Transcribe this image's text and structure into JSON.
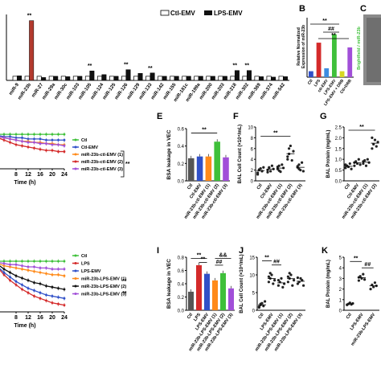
{
  "chart_data": [
    {
      "panel": "A",
      "type": "bar",
      "legend": [
        "Ctl-EMV",
        "LPS-EMV"
      ],
      "categories": [
        "miR-9",
        "miR-23b",
        "miR-27",
        "miR-29a",
        "miR-30c",
        "miR-103",
        "miR-105",
        "miR-124",
        "miR-125",
        "miR-126",
        "miR-129",
        "miR-133",
        "miR-142",
        "miR-155",
        "miR-181c",
        "miR-199a",
        "miR-200",
        "miR-203",
        "miR-218",
        "miR-302",
        "miR-369",
        "miR-374",
        "miR-542"
      ],
      "series": [
        {
          "name": "Ctl-EMV",
          "values": [
            1,
            1,
            1,
            1,
            1,
            1,
            1,
            1,
            1,
            1,
            1,
            1,
            1,
            1,
            1,
            1,
            1,
            1,
            1,
            1,
            1,
            1,
            1
          ]
        },
        {
          "name": "LPS-EMV",
          "values": [
            1.1,
            14.5,
            0.7,
            1.0,
            0.9,
            1.0,
            2.3,
            1.4,
            1.0,
            2.6,
            1.7,
            1.8,
            1.0,
            1.0,
            1.0,
            1.0,
            1.0,
            1.0,
            2.4,
            2.4,
            0.9,
            0.8,
            0.9
          ]
        }
      ],
      "annotations": [
        {
          "category": "miR-23b",
          "text": "**"
        },
        {
          "category": "miR-105",
          "text": "**"
        },
        {
          "category": "miR-126",
          "text": "**"
        },
        {
          "category": "miR-133",
          "text": "**"
        },
        {
          "category": "miR-218",
          "text": "**"
        },
        {
          "category": "miR-302",
          "text": "**"
        }
      ]
    },
    {
      "panel": "B",
      "type": "bar",
      "ylabel": "Relative Normalized Expression of miR-23b",
      "categories": [
        "Ctl",
        "LPS",
        "ctl-EMV",
        "LPS-EMV",
        "LPS-EMV + DRB",
        "Ctl+DRB"
      ],
      "values": [
        1,
        5.8,
        1.5,
        7.2,
        1.0,
        5.0
      ],
      "colors": [
        "#3050c8",
        "#d42a2a",
        "#3d8de0",
        "#3fc03a",
        "#d7d722",
        "#a14fd8"
      ],
      "annotations": [
        "**",
        "##",
        "**"
      ]
    },
    {
      "panel": "C",
      "type": "image",
      "labels": [
        "Brightfield / miR-23b"
      ]
    },
    {
      "panel": "D",
      "type": "line",
      "xlabel": "Time (h)",
      "x": [
        0,
        2,
        4,
        6,
        8,
        10,
        12,
        14,
        16,
        18,
        20,
        22,
        24
      ],
      "xticks": [
        "8",
        "12",
        "16",
        "20",
        "24"
      ],
      "series": [
        {
          "name": "Ctl",
          "color": "#3fc03a",
          "values": [
            1,
            1,
            1,
            1,
            1,
            1,
            1,
            1,
            1,
            1,
            1,
            1,
            1
          ]
        },
        {
          "name": "Ctl-EMV",
          "color": "#3050c8",
          "values": [
            1,
            0.99,
            0.98,
            0.98,
            0.97,
            0.97,
            0.96,
            0.96,
            0.96,
            0.95,
            0.95,
            0.95,
            0.95
          ]
        },
        {
          "name": "miR-23b-ctl-EMV (1)",
          "color": "#ff8a1a",
          "values": [
            1,
            0.98,
            0.97,
            0.96,
            0.95,
            0.94,
            0.94,
            0.93,
            0.93,
            0.92,
            0.92,
            0.91,
            0.91
          ]
        },
        {
          "name": "miR-23b-ctl-EMV (2)",
          "color": "#d42a2a",
          "values": [
            1,
            0.97,
            0.95,
            0.93,
            0.91,
            0.9,
            0.89,
            0.88,
            0.87,
            0.86,
            0.86,
            0.85,
            0.85
          ]
        },
        {
          "name": "miR-23b-ctl-EMV (3)",
          "color": "#a14fd8",
          "values": [
            1,
            0.98,
            0.97,
            0.96,
            0.95,
            0.94,
            0.93,
            0.93,
            0.92,
            0.92,
            0.91,
            0.91,
            0.9
          ]
        }
      ],
      "annotations": [
        "**"
      ]
    },
    {
      "panel": "E",
      "type": "bar",
      "ylabel": "BSA leakage in VEC",
      "categories": [
        "Ctl",
        "Ctl-EMV",
        "miR-23b-ctl-EMV (1)",
        "miR-23b-ctl-EMV (2)",
        "miR-23b-ctl-EMV (3)"
      ],
      "values": [
        0.26,
        0.28,
        0.28,
        0.45,
        0.27
      ],
      "colors": [
        "#555555",
        "#3050c8",
        "#ff8a1a",
        "#3fc03a",
        "#a14fd8"
      ],
      "ylim": [
        0,
        0.6
      ],
      "yticks": [
        "0.0",
        "0.2",
        "0.4",
        "0.6"
      ],
      "annotations": [
        "**"
      ]
    },
    {
      "panel": "F",
      "type": "scatter",
      "ylabel": "BAL Cell Count (×10⁴/mL)",
      "categories": [
        "Ctl",
        "Ctl-EMV",
        "miR-23b-ctl-EMV (1)",
        "miR-23b-ctl-EMV (2)",
        "miR-23b-ctl-EMV (3)"
      ],
      "ylim": [
        0,
        10
      ],
      "yticks": [
        "0",
        "2",
        "4",
        "6",
        "8",
        "10"
      ],
      "groups": [
        [
          1.5,
          2,
          2.3,
          1.8,
          2.5,
          1.2,
          2.1
        ],
        [
          2,
          2.5,
          1.8,
          2.8,
          2.2,
          1.6,
          2.4
        ],
        [
          2.2,
          2.8,
          1.7,
          3,
          2.4,
          2.6,
          1.9
        ],
        [
          4,
          5,
          6.5,
          3.8,
          5.5,
          4.5,
          6
        ],
        [
          2.5,
          3,
          2,
          3.4,
          1.8,
          2.7,
          2.2
        ]
      ],
      "annotations": [
        "**"
      ]
    },
    {
      "panel": "G",
      "type": "scatter",
      "ylabel": "BAL Protein (mg/mL)",
      "categories": [
        "Ctl",
        "Ctl-EMV",
        "miR-23b-ctl-EMV (1)",
        "miR-23b-ctl-EMV (2)"
      ],
      "ylim": [
        0,
        2.5
      ],
      "yticks": [
        "0.0",
        "0.5",
        "1.0",
        "1.5",
        "2.0",
        "2.5"
      ],
      "groups": [
        [
          0.6,
          0.7,
          0.65,
          0.8,
          0.55,
          0.75
        ],
        [
          0.7,
          0.9,
          0.8,
          1.0,
          0.75,
          0.85
        ],
        [
          0.8,
          0.95,
          0.7,
          1.0,
          0.85,
          0.9
        ],
        [
          1.5,
          1.7,
          1.9,
          1.6,
          1.8,
          2.0
        ]
      ],
      "annotations": [
        "**"
      ]
    },
    {
      "panel": "H",
      "type": "line",
      "xlabel": "Time (h)",
      "x": [
        0,
        2,
        4,
        6,
        8,
        10,
        12,
        14,
        16,
        18,
        20,
        22,
        24
      ],
      "xticks": [
        "8",
        "12",
        "16",
        "20",
        "24"
      ],
      "series": [
        {
          "name": "Ctl",
          "color": "#3fc03a",
          "values": [
            1,
            1,
            1,
            1,
            1,
            1,
            1,
            1,
            1,
            1,
            1,
            1,
            1
          ]
        },
        {
          "name": "LPS",
          "color": "#d42a2a",
          "values": [
            1,
            0.94,
            0.88,
            0.83,
            0.79,
            0.75,
            0.72,
            0.69,
            0.67,
            0.65,
            0.63,
            0.62,
            0.61
          ]
        },
        {
          "name": "LPS-EMV",
          "color": "#3050c8",
          "values": [
            1,
            0.95,
            0.9,
            0.86,
            0.82,
            0.79,
            0.76,
            0.74,
            0.72,
            0.7,
            0.69,
            0.68,
            0.67
          ]
        },
        {
          "name": "miR-23b-LPS-EMV (1)",
          "color": "#ff8a1a",
          "values": [
            1,
            0.98,
            0.96,
            0.95,
            0.94,
            0.93,
            0.92,
            0.91,
            0.9,
            0.89,
            0.88,
            0.88,
            0.87
          ]
        },
        {
          "name": "miR-23b-LPS-EMV (2)",
          "color": "#111111",
          "values": [
            1,
            0.97,
            0.93,
            0.9,
            0.87,
            0.85,
            0.83,
            0.81,
            0.8,
            0.78,
            0.77,
            0.76,
            0.75
          ]
        },
        {
          "name": "miR-23b-LPS-EMV (3)",
          "color": "#a14fd8",
          "values": [
            1,
            0.99,
            0.98,
            0.97,
            0.97,
            0.96,
            0.95,
            0.95,
            0.94,
            0.94,
            0.93,
            0.93,
            0.93
          ]
        }
      ],
      "annotations": [
        "**",
        "**"
      ]
    },
    {
      "panel": "I",
      "type": "bar",
      "ylabel": "BSA leakage in VEC",
      "categories": [
        "Ctl",
        "LPS",
        "LPS-EMV",
        "miR-23b-LPS-EMV (1)",
        "miR-23b-LPS-EMV (2)",
        "miR-23b-LPS-EMV (3)"
      ],
      "values": [
        0.28,
        0.68,
        0.55,
        0.45,
        0.56,
        0.33
      ],
      "colors": [
        "#555555",
        "#d42a2a",
        "#3050c8",
        "#ff8a1a",
        "#3fc03a",
        "#a14fd8"
      ],
      "ylim": [
        0,
        0.8
      ],
      "yticks": [
        "0.0",
        "0.2",
        "0.4",
        "0.6",
        "0.8"
      ],
      "annotations": [
        "**",
        "**",
        "&&",
        "##"
      ]
    },
    {
      "panel": "J",
      "type": "scatter",
      "ylabel": "BAL Cell Count (×10⁴/mL)",
      "categories": [
        "Ctl",
        "LPS-EMV",
        "miR-23b-LPS-EMV (1)",
        "miR-23b-LPS-EMV (2)",
        "miR-23b-LPS-EMV (3)"
      ],
      "ylim": [
        0,
        15
      ],
      "yticks": [
        "0",
        "5",
        "10",
        "15"
      ],
      "groups": [
        [
          1,
          1.5,
          2,
          1.2,
          2.5,
          0.8,
          1.8
        ],
        [
          8,
          9,
          10,
          7.5,
          8.5,
          9.5,
          10.5
        ],
        [
          7,
          8,
          9,
          6.5,
          7.5,
          8.5
        ],
        [
          8,
          9,
          10,
          7,
          8.5,
          9.5,
          10.5
        ],
        [
          7.5,
          8,
          9,
          8.5,
          7,
          9.2
        ]
      ],
      "annotations": [
        "**",
        "##"
      ]
    },
    {
      "panel": "K",
      "type": "scatter",
      "ylabel": "BAL Protein (mg/mL)",
      "categories": [
        "Ctl",
        "LPS-EMV",
        "miR-23b-LPS-EMV"
      ],
      "ylim": [
        0,
        5
      ],
      "yticks": [
        "0",
        "1",
        "2",
        "3",
        "4",
        "5"
      ],
      "groups": [
        [
          0.5,
          0.6,
          0.7,
          0.55,
          0.65
        ],
        [
          2.8,
          3.2,
          3,
          3.4,
          2.9,
          3.1
        ],
        [
          2,
          2.4,
          2.2,
          2.6,
          2.3
        ]
      ],
      "annotations": [
        "**",
        "##"
      ]
    }
  ]
}
